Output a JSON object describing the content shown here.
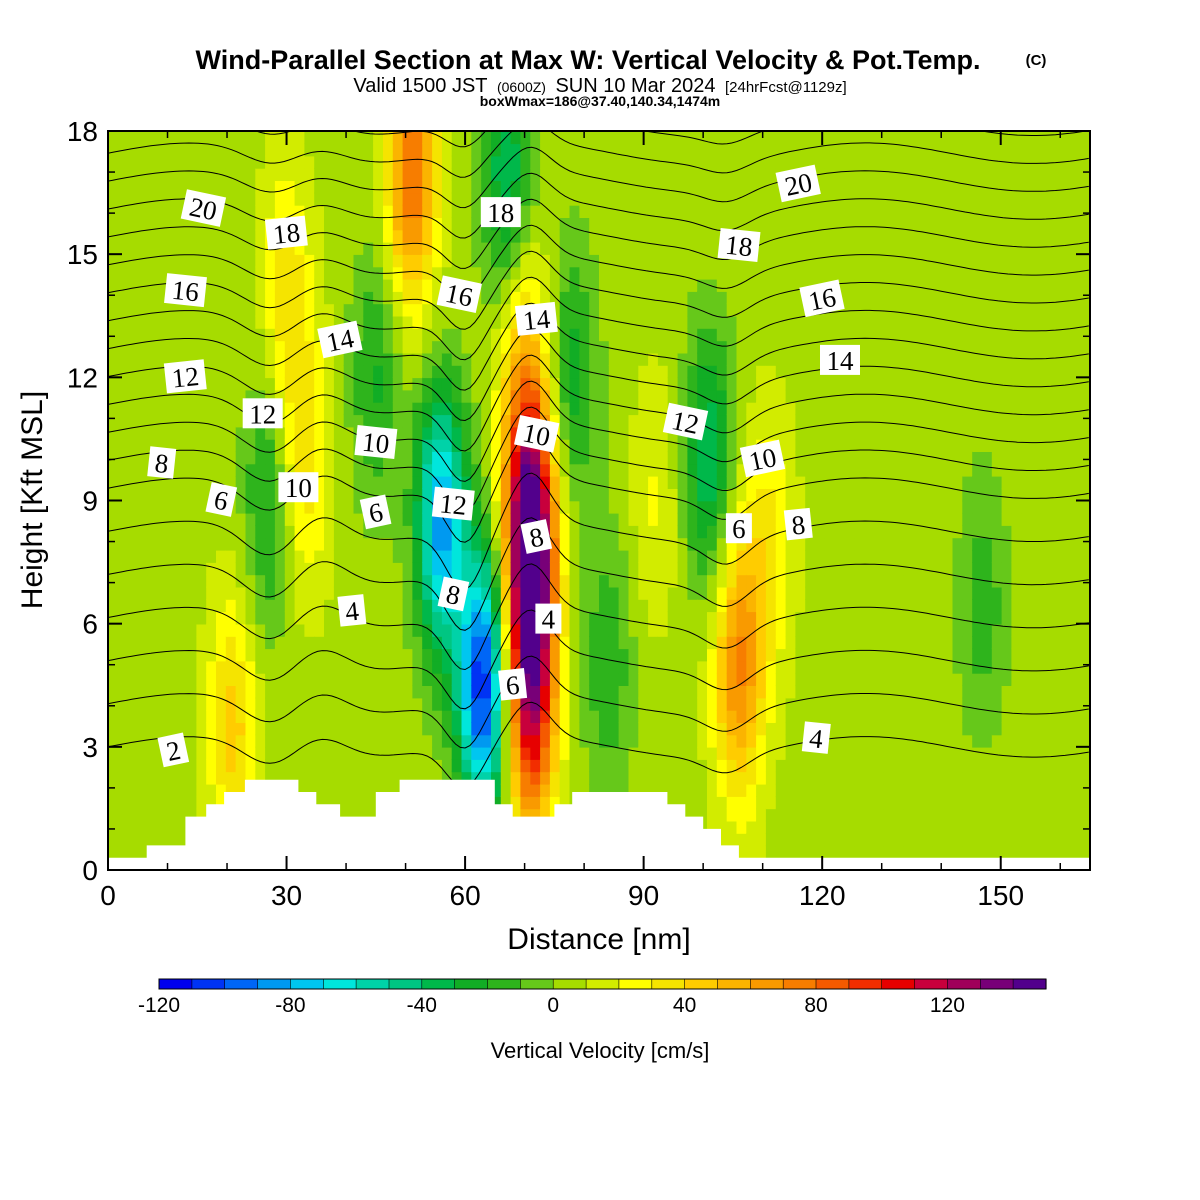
{
  "header": {
    "title": "Wind-Parallel Section at Max W: Vertical Velocity & Pot.Temp.",
    "copyright": "(C)",
    "valid_a": "Valid 1500 JST",
    "valid_b": "(0600Z)",
    "valid_c": "SUN 10 Mar 2024",
    "valid_d": "[24hrFcst@1129z]",
    "boxline": "boxWmax=186@37.40,140.34,1474m"
  },
  "chart_data": {
    "type": "heatmap",
    "xlabel": "Distance [nm]",
    "ylabel": "Height [Kft MSL]",
    "xlim": [
      0,
      165
    ],
    "ylim": [
      0,
      18
    ],
    "x_ticks": [
      0,
      30,
      60,
      90,
      120,
      150
    ],
    "y_ticks": [
      0,
      3,
      6,
      9,
      12,
      15,
      18
    ],
    "grid": false,
    "colorbar": {
      "label": "Vertical Velocity [cm/s]",
      "range": [
        -120,
        150
      ],
      "step": 10,
      "ticks": [
        -120,
        -80,
        -40,
        0,
        40,
        80,
        120
      ],
      "colors": [
        "#0000ee",
        "#0033f4",
        "#0066f6",
        "#0099f0",
        "#00c6f0",
        "#00e6dc",
        "#00d2a8",
        "#00c682",
        "#00b84a",
        "#11ad25",
        "#2eb41c",
        "#66c81a",
        "#a6dc00",
        "#d2ec00",
        "#ffff00",
        "#f5e400",
        "#ffcc00",
        "#fbb400",
        "#f99a00",
        "#f77d00",
        "#f55a00",
        "#f22d00",
        "#e60000",
        "#c8003c",
        "#a0005a",
        "#780078",
        "#52008c"
      ]
    },
    "terrain_profile": [
      [
        0,
        0.3
      ],
      [
        6.5,
        0.6
      ],
      [
        13,
        1.3
      ],
      [
        16.5,
        1.6
      ],
      [
        19.5,
        1.9
      ],
      [
        23,
        2.2
      ],
      [
        32,
        1.9
      ],
      [
        35,
        1.6
      ],
      [
        39,
        1.3
      ],
      [
        45,
        1.9
      ],
      [
        49,
        2.2
      ],
      [
        65,
        1.6
      ],
      [
        68,
        1.3
      ],
      [
        75,
        1.6
      ],
      [
        78,
        1.9
      ],
      [
        94,
        1.6
      ],
      [
        97,
        1.3
      ],
      [
        100,
        1.0
      ],
      [
        103,
        0.6
      ],
      [
        106,
        0.3
      ],
      [
        165,
        0.3
      ]
    ],
    "vertical_velocity_features": [
      {
        "x": 21,
        "z": 3.5,
        "w": 38
      },
      {
        "x": 30,
        "z": 14.0,
        "w": 30
      },
      {
        "x": 33,
        "z": 10.0,
        "w": 32
      },
      {
        "x": 27,
        "z": 9.0,
        "w": -32
      },
      {
        "x": 45,
        "z": 12.0,
        "w": -28
      },
      {
        "x": 51,
        "z": 17.0,
        "w": 75
      },
      {
        "x": 56,
        "z": 8.5,
        "w": -90
      },
      {
        "x": 63,
        "z": 4.5,
        "w": -115
      },
      {
        "x": 67,
        "z": 17.0,
        "w": -45
      },
      {
        "x": 70,
        "z": 12.0,
        "w": 45
      },
      {
        "x": 71,
        "z": 8.0,
        "w": 150
      },
      {
        "x": 71,
        "z": 4.0,
        "w": 100
      },
      {
        "x": 78,
        "z": 12.0,
        "w": -32
      },
      {
        "x": 84,
        "z": 5.0,
        "w": -25
      },
      {
        "x": 92,
        "z": 9.0,
        "w": 15
      },
      {
        "x": 101,
        "z": 10.0,
        "w": -45
      },
      {
        "x": 106,
        "z": 5.0,
        "w": 65
      },
      {
        "x": 111,
        "z": 8.0,
        "w": 25
      },
      {
        "x": 147,
        "z": 6.5,
        "w": -22
      }
    ],
    "potential_temperature": {
      "levels": [
        2,
        3,
        4,
        5,
        6,
        7,
        8,
        9,
        10,
        11,
        12,
        13,
        14,
        15,
        16,
        17,
        18,
        19,
        20,
        21
      ],
      "labels": [
        {
          "text": "2",
          "x": 11,
          "z": 2.9
        },
        {
          "text": "4",
          "x": 41,
          "z": 6.3
        },
        {
          "text": "4",
          "x": 74,
          "z": 6.1
        },
        {
          "text": "4",
          "x": 119,
          "z": 3.2
        },
        {
          "text": "6",
          "x": 19,
          "z": 9.0
        },
        {
          "text": "6",
          "x": 45,
          "z": 8.7
        },
        {
          "text": "6",
          "x": 68,
          "z": 4.5
        },
        {
          "text": "6",
          "x": 106,
          "z": 8.3
        },
        {
          "text": "8",
          "x": 9,
          "z": 9.9
        },
        {
          "text": "8",
          "x": 58,
          "z": 6.7
        },
        {
          "text": "8",
          "x": 72,
          "z": 8.1
        },
        {
          "text": "8",
          "x": 116,
          "z": 8.4
        },
        {
          "text": "10",
          "x": 32,
          "z": 9.3
        },
        {
          "text": "10",
          "x": 45,
          "z": 10.4
        },
        {
          "text": "10",
          "x": 72,
          "z": 10.6
        },
        {
          "text": "10",
          "x": 110,
          "z": 10.0
        },
        {
          "text": "12",
          "x": 13,
          "z": 12.0
        },
        {
          "text": "12",
          "x": 26,
          "z": 11.1
        },
        {
          "text": "12",
          "x": 58,
          "z": 8.9
        },
        {
          "text": "12",
          "x": 97,
          "z": 10.9
        },
        {
          "text": "14",
          "x": 39,
          "z": 12.9
        },
        {
          "text": "14",
          "x": 72,
          "z": 13.4
        },
        {
          "text": "14",
          "x": 123,
          "z": 12.4
        },
        {
          "text": "16",
          "x": 13,
          "z": 14.1
        },
        {
          "text": "16",
          "x": 59,
          "z": 14.0
        },
        {
          "text": "16",
          "x": 120,
          "z": 13.9
        },
        {
          "text": "18",
          "x": 30,
          "z": 15.5
        },
        {
          "text": "18",
          "x": 66,
          "z": 16.0
        },
        {
          "text": "18",
          "x": 106,
          "z": 15.2
        },
        {
          "text": "20",
          "x": 16,
          "z": 16.1
        },
        {
          "text": "20",
          "x": 116,
          "z": 16.7
        }
      ]
    }
  }
}
